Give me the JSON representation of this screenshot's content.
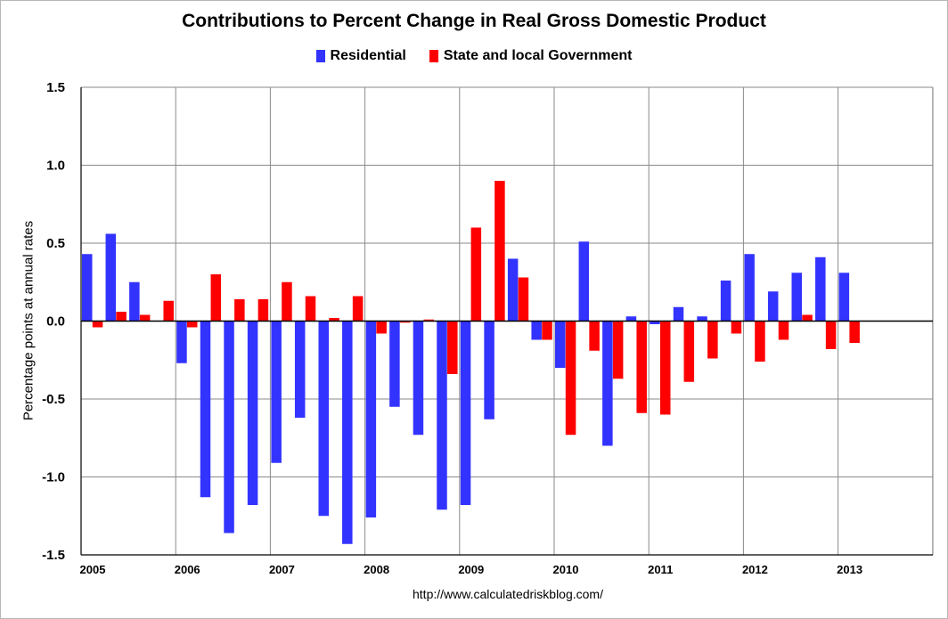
{
  "chart_data": {
    "type": "bar",
    "title": "Contributions to Percent Change in Real Gross Domestic Product",
    "ylabel": "Percentage points at annual rates",
    "xlabel": "",
    "source": "http://www.calculatedriskblog.com/",
    "ylim": [
      -1.5,
      1.5
    ],
    "yticks": [
      "1.5",
      "1.0",
      "0.5",
      "0.0",
      "-0.5",
      "-1.0",
      "-1.5"
    ],
    "ytick_values": [
      1.5,
      1.0,
      0.5,
      0.0,
      -0.5,
      -1.0,
      -1.5
    ],
    "xtick_labels": [
      "2005",
      "2006",
      "2007",
      "2008",
      "2009",
      "2010",
      "2011",
      "2012",
      "2013"
    ],
    "grid": true,
    "legend_position": "top-center",
    "categories": [
      "2005 Q1",
      "2005 Q2",
      "2005 Q3",
      "2005 Q4",
      "2006 Q1",
      "2006 Q2",
      "2006 Q3",
      "2006 Q4",
      "2007 Q1",
      "2007 Q2",
      "2007 Q3",
      "2007 Q4",
      "2008 Q1",
      "2008 Q2",
      "2008 Q3",
      "2008 Q4",
      "2009 Q1",
      "2009 Q2",
      "2009 Q3",
      "2009 Q4",
      "2010 Q1",
      "2010 Q2",
      "2010 Q3",
      "2010 Q4",
      "2011 Q1",
      "2011 Q2",
      "2011 Q3",
      "2011 Q4",
      "2012 Q1",
      "2012 Q2",
      "2012 Q3",
      "2012 Q4",
      "2013 Q1"
    ],
    "series": [
      {
        "name": "Residential",
        "color": "#3333ff",
        "values": [
          0.43,
          0.56,
          0.25,
          0.0,
          -0.27,
          -1.13,
          -1.36,
          -1.18,
          -0.91,
          -0.62,
          -1.25,
          -1.43,
          -1.26,
          -0.55,
          -0.73,
          -1.21,
          -1.18,
          -0.63,
          0.4,
          -0.12,
          -0.3,
          0.51,
          -0.8,
          0.03,
          -0.02,
          0.09,
          0.03,
          0.26,
          0.43,
          0.19,
          0.31,
          0.41,
          0.31
        ]
      },
      {
        "name": "State and local Government",
        "color": "#ff0000",
        "values": [
          -0.04,
          0.06,
          0.04,
          0.13,
          -0.04,
          0.3,
          0.14,
          0.14,
          0.25,
          0.16,
          0.02,
          0.16,
          -0.08,
          -0.01,
          0.01,
          -0.34,
          0.6,
          0.9,
          0.28,
          -0.12,
          -0.73,
          -0.19,
          -0.37,
          -0.59,
          -0.6,
          -0.39,
          -0.24,
          -0.08,
          -0.26,
          -0.12,
          0.04,
          -0.18,
          -0.14
        ]
      }
    ]
  }
}
